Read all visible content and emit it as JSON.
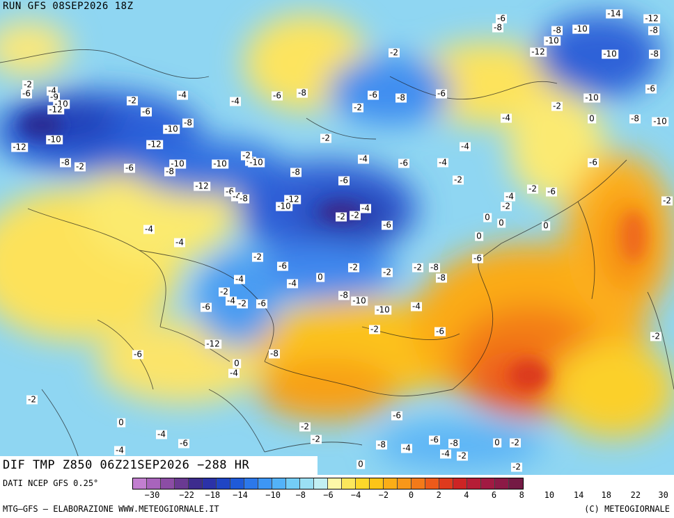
{
  "map": {
    "run_title": "RUN GFS 08SEP2026 18Z",
    "field_title": "DIF TMP Z850 06Z21SEP2026 −288 HR",
    "source_note": "DATI NCEP GFS 0.25°",
    "credit_left": "MTG–GFS – ELABORAZIONE WWW.METEOGIORNALE.IT",
    "credit_right": "(C) METEOGIORNALE",
    "colorbar_colors": [
      "#c27fd0",
      "#a864bc",
      "#8c4da5",
      "#6a3a92",
      "#3d2c8e",
      "#2b32a8",
      "#1f45c4",
      "#1f5ad8",
      "#2c78ea",
      "#3d96f4",
      "#53b2f8",
      "#74cdf6",
      "#9be0f4",
      "#c2eff3",
      "#fdf7a8",
      "#fbe75c",
      "#fdd72a",
      "#fdc417",
      "#fbad17",
      "#f89719",
      "#f37a19",
      "#ec5a1a",
      "#df3a1d",
      "#cd2424",
      "#b61d36",
      "#a11a42",
      "#8c1a46",
      "#741a44"
    ],
    "colorbar_ticks": [
      "−30",
      "−22",
      "−18",
      "−14",
      "−10",
      "−8",
      "−6",
      "−4",
      "−2",
      "0",
      "2",
      "4",
      "6",
      "8",
      "10",
      "14",
      "18",
      "22",
      "30"
    ],
    "contour_labels": [
      "-2",
      "-6",
      "-4",
      "-9",
      "-10",
      "-12",
      "-2",
      "-4",
      "-6",
      "-10",
      "-8",
      "-12",
      "-10",
      "-8",
      "-2",
      "-6",
      "-10",
      "-8",
      "-10",
      "-12",
      "-6",
      "-4",
      "-8",
      "-12",
      "-10",
      "-4",
      "-2",
      "-10",
      "-4",
      "-6",
      "-8",
      "-2",
      "-4",
      "-6",
      "-2",
      "-6",
      "-8",
      "-12",
      "-8",
      "-6",
      "-4",
      "-2",
      "-2",
      "-6",
      "-4",
      "-6",
      "-2",
      "-2",
      "-6",
      "-8",
      "-8",
      "-10",
      "-12",
      "-10",
      "-14",
      "-10",
      "-12",
      "-8",
      "-8",
      "-6",
      "-2",
      "-10",
      "-4",
      "0",
      "-8",
      "-10",
      "-4",
      "-6",
      "-4",
      "-2",
      "-6",
      "-2",
      "0",
      "0",
      "0",
      "0",
      "-2",
      "-4",
      "-4",
      "-2",
      "-6",
      "-4",
      "0",
      "-2",
      "-2",
      "-2",
      "-8",
      "-8",
      "-6",
      "-4",
      "-2",
      "-6",
      "-4",
      "-2",
      "-6",
      "-8",
      "-10",
      "-10",
      "-4",
      "-2",
      "-6",
      "-2",
      "-12",
      "-8",
      "-6",
      "0",
      "-4",
      "-2",
      "0",
      "-4",
      "-6",
      "-4",
      "-2",
      "-2",
      "-6",
      "-8",
      "-4",
      "-6",
      "-8",
      "-4",
      "-2",
      "0",
      "-2",
      "0",
      "-2",
      "0",
      "-2",
      "-2",
      "-4",
      "-6",
      "-4",
      "-2",
      "-6",
      "-8",
      "-2",
      "-6",
      "-4",
      "-2",
      "-4",
      "-8",
      "-6",
      "-6",
      "-8",
      "-2",
      "0"
    ]
  }
}
